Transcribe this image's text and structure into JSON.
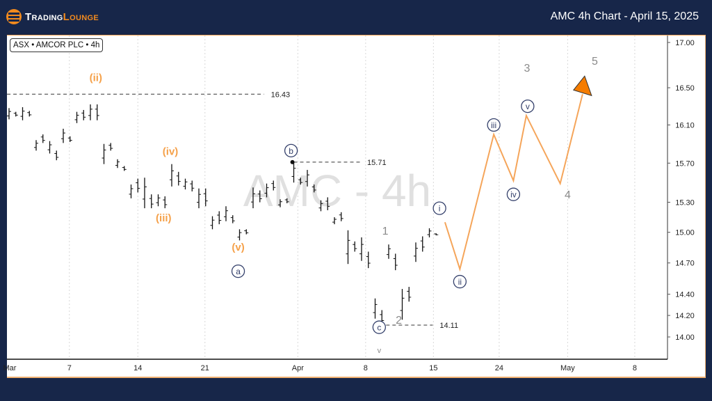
{
  "header": {
    "brand_part1": "Trading",
    "brand_part2": "Lounge",
    "title": "AMC 4h Chart - April 15, 2025",
    "accent": "#f28a1e",
    "background": "#172649"
  },
  "symbol_label": "ASX • AMCOR PLC • 4h",
  "watermark": "AMC - 4h",
  "chart_data": {
    "type": "ohlc-bar",
    "scale": "log",
    "ylim": [
      13.85,
      17.1
    ],
    "y_ticks": [
      17.0,
      16.5,
      16.1,
      15.7,
      15.3,
      15.0,
      14.7,
      14.4,
      14.2,
      14.0
    ],
    "y_tick_labels": [
      "17.00",
      "16.50",
      "16.10",
      "15.70",
      "15.30",
      "15.00",
      "14.70",
      "14.40",
      "14.20",
      "14.00"
    ],
    "x_ticks": [
      {
        "label": "Mar",
        "bar": 0
      },
      {
        "label": "7",
        "bar": 8.9
      },
      {
        "label": "14",
        "bar": 19
      },
      {
        "label": "21",
        "bar": 28.9
      },
      {
        "label": "Apr",
        "bar": 42.6
      },
      {
        "label": "8",
        "bar": 52.6
      },
      {
        "label": "15",
        "bar": 62.6
      },
      {
        "label": "24",
        "bar": 72.3
      },
      {
        "label": "May",
        "bar": 82.4
      },
      {
        "label": "8",
        "bar": 92.3
      }
    ],
    "grid": "vertical-dotted",
    "bars": [
      [
        16.28,
        16.16
      ],
      [
        16.24,
        16.19
      ],
      [
        16.29,
        16.15
      ],
      [
        16.25,
        16.19
      ],
      [
        15.94,
        15.83
      ],
      [
        16.0,
        15.91
      ],
      [
        15.93,
        15.8
      ],
      [
        15.83,
        15.73
      ],
      [
        16.06,
        15.91
      ],
      [
        15.98,
        15.92
      ],
      [
        16.24,
        16.12
      ],
      [
        16.26,
        16.15
      ],
      [
        16.32,
        16.15
      ],
      [
        16.32,
        16.15
      ],
      [
        15.9,
        15.69
      ],
      [
        15.91,
        15.83
      ],
      [
        15.74,
        15.65
      ],
      [
        15.67,
        15.62
      ],
      [
        15.48,
        15.34
      ],
      [
        15.54,
        15.4
      ],
      [
        15.55,
        15.24
      ],
      [
        15.38,
        15.24
      ],
      [
        15.38,
        15.26
      ],
      [
        15.36,
        15.24
      ],
      [
        15.69,
        15.46
      ],
      [
        15.61,
        15.47
      ],
      [
        15.54,
        15.43
      ],
      [
        15.52,
        15.41
      ],
      [
        15.44,
        15.24
      ],
      [
        15.44,
        15.26
      ],
      [
        15.16,
        15.03
      ],
      [
        15.21,
        15.08
      ],
      [
        15.26,
        15.11
      ],
      [
        15.17,
        15.09
      ],
      [
        15.03,
        14.92
      ],
      [
        15.03,
        14.98
      ],
      [
        15.45,
        15.24
      ],
      [
        15.42,
        15.3
      ],
      [
        15.49,
        15.35
      ],
      [
        15.52,
        15.42
      ],
      [
        15.33,
        15.25
      ],
      [
        15.34,
        15.29
      ],
      [
        15.71,
        15.5
      ],
      [
        15.55,
        15.48
      ],
      [
        15.63,
        15.46
      ],
      [
        15.48,
        15.4
      ],
      [
        15.32,
        15.21
      ],
      [
        15.35,
        15.22
      ],
      [
        15.15,
        15.08
      ],
      [
        15.2,
        15.11
      ],
      [
        15.02,
        14.69
      ],
      [
        14.91,
        14.81
      ],
      [
        14.95,
        14.72
      ],
      [
        14.81,
        14.65
      ],
      [
        14.36,
        14.17
      ],
      [
        14.25,
        14.11
      ],
      [
        14.88,
        14.74
      ],
      [
        14.79,
        14.63
      ],
      [
        14.45,
        14.16
      ],
      [
        14.47,
        14.33
      ],
      [
        14.9,
        14.71
      ],
      [
        14.96,
        14.81
      ],
      [
        15.04,
        14.95
      ],
      [
        14.99,
        14.97
      ]
    ],
    "levels": [
      {
        "label": "16.43",
        "price": 16.43,
        "from_bar": -0.3,
        "to_bar": 37.6
      },
      {
        "label": "15.71",
        "price": 15.71,
        "from_bar": 42,
        "to_bar": 51.8
      },
      {
        "label": "14.11",
        "price": 14.11,
        "from_bar": 54.7,
        "to_bar": 62.5
      }
    ],
    "projection": {
      "color": "#f5a55a",
      "points": [
        {
          "bar": 64.3,
          "price": 15.1
        },
        {
          "bar": 66.5,
          "price": 14.64
        },
        {
          "bar": 71.5,
          "price": 16.0
        },
        {
          "bar": 74.4,
          "price": 15.52
        },
        {
          "bar": 76.3,
          "price": 16.2
        },
        {
          "bar": 81.3,
          "price": 15.49
        },
        {
          "bar": 84.6,
          "price": 16.43
        }
      ],
      "target_color": "#f57c00"
    },
    "wave_labels": [
      {
        "text": "(ii)",
        "style": "orange",
        "bar": 12.8,
        "price": 16.62
      },
      {
        "text": "(iii)",
        "style": "orange",
        "bar": 22.8,
        "price": 15.15
      },
      {
        "text": "(iv)",
        "style": "orange",
        "bar": 23.8,
        "price": 15.83
      },
      {
        "text": "(v)",
        "style": "orange",
        "bar": 33.8,
        "price": 14.86
      },
      {
        "text": "a",
        "style": "circle",
        "bar": 33.8,
        "price": 14.62
      },
      {
        "text": "b",
        "style": "circle",
        "bar": 41.6,
        "price": 15.83
      },
      {
        "text": "c",
        "style": "circle",
        "bar": 54.6,
        "price": 14.09
      },
      {
        "text": "i",
        "style": "circle",
        "bar": 63.5,
        "price": 15.24
      },
      {
        "text": "ii",
        "style": "circle",
        "bar": 66.5,
        "price": 14.52
      },
      {
        "text": "iii",
        "style": "circle",
        "bar": 71.5,
        "price": 16.1
      },
      {
        "text": "iv",
        "style": "circle",
        "bar": 74.4,
        "price": 15.38
      },
      {
        "text": "v",
        "style": "circle",
        "bar": 76.5,
        "price": 16.3
      },
      {
        "text": "1",
        "style": "gray",
        "bar": 55.5,
        "price": 15.02
      },
      {
        "text": "2",
        "style": "gray",
        "bar": 57.5,
        "price": 14.16
      },
      {
        "text": "3",
        "style": "gray",
        "bar": 76.4,
        "price": 16.72
      },
      {
        "text": "4",
        "style": "gray",
        "bar": 82.4,
        "price": 15.38
      },
      {
        "text": "5",
        "style": "gray",
        "bar": 86.4,
        "price": 16.8
      },
      {
        "text": "v",
        "style": "gray-small",
        "bar": 54.6,
        "price": 13.88
      }
    ]
  }
}
